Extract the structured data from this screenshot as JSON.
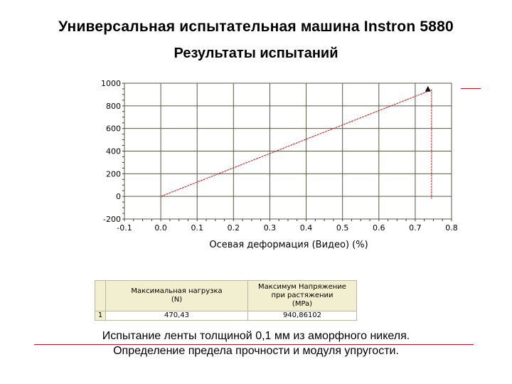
{
  "slide": {
    "title": "Универсальная испытательная машина Instron 5880",
    "subtitle": "Результаты испытаний",
    "caption_line1": "Испытание ленты толщиной 0,1 мм из аморфного никеля.",
    "caption_line2": "Определение предела прочности и модуля упругости.",
    "accent_color": "#c8102e"
  },
  "chart_data": {
    "type": "line",
    "title": "",
    "xlabel": "Осевая деформация (Видео) (%)",
    "ylabel": "",
    "xlim": [
      -0.1,
      0.8
    ],
    "ylim": [
      -200,
      1000
    ],
    "x_ticks": [
      "-0.1",
      "0.0",
      "0.1",
      "0.2",
      "0.3",
      "0.4",
      "0.5",
      "0.6",
      "0.7",
      "0.8"
    ],
    "y_ticks": [
      "-200",
      "0",
      "200",
      "400",
      "600",
      "800",
      "1000"
    ],
    "grid": true,
    "series": [
      {
        "color": "#cc1111",
        "x": [
          0.0,
          0.745,
          0.745
        ],
        "y": [
          0,
          940.86,
          -20
        ]
      }
    ],
    "marker": {
      "x": 0.735,
      "y": 945,
      "symbol": "triangle"
    }
  },
  "results_table": {
    "headers": [
      "",
      "Максимальная нагрузка\n(N)",
      "Максимум Напряжение\nпри растяжении\n(MPa)"
    ],
    "rows": [
      [
        "1",
        "470,43",
        "940,86102"
      ]
    ]
  }
}
